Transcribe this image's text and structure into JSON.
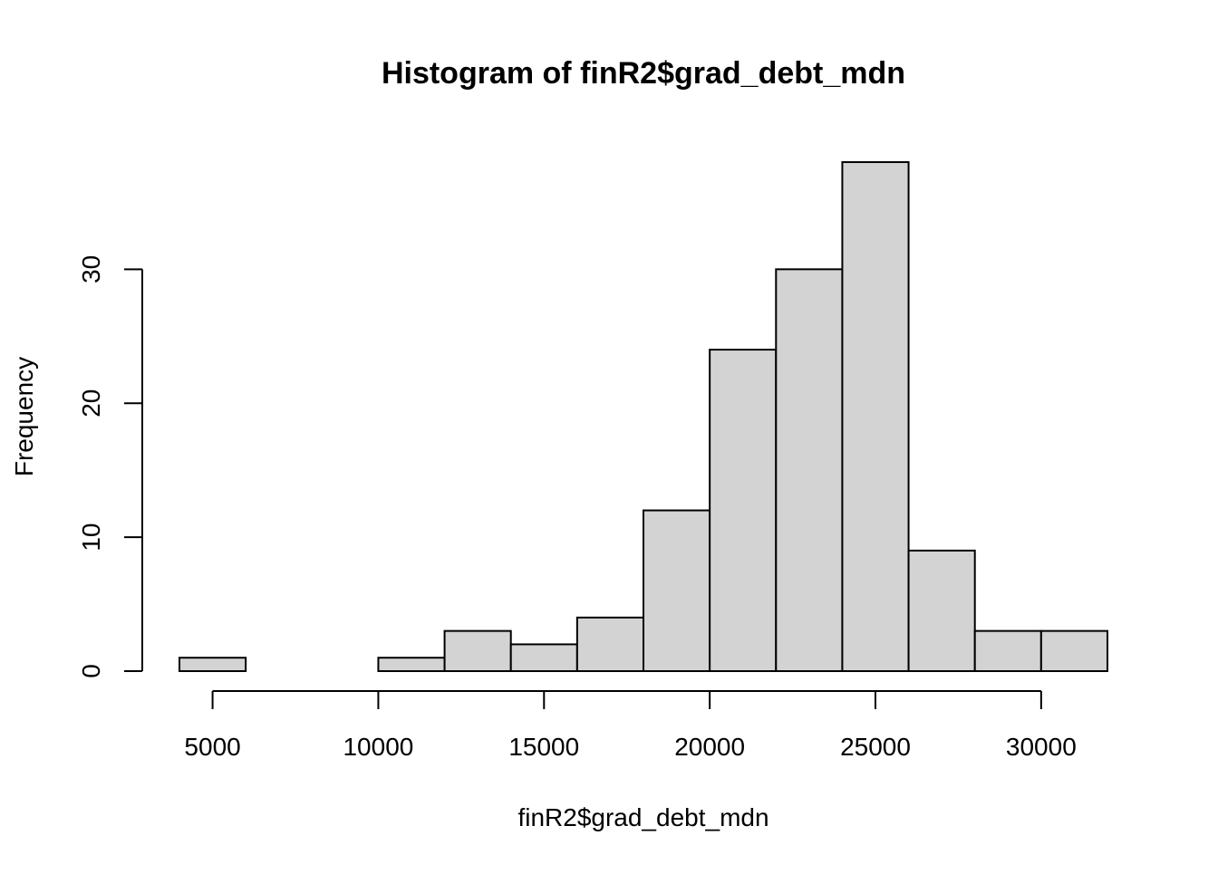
{
  "chart_data": {
    "type": "bar",
    "title": "Histogram of finR2$grad_debt_mdn",
    "xlabel": "finR2$grad_debt_mdn",
    "ylabel": "Frequency",
    "bins": [
      {
        "start": 4000,
        "end": 6000,
        "count": 1
      },
      {
        "start": 6000,
        "end": 8000,
        "count": 0
      },
      {
        "start": 8000,
        "end": 10000,
        "count": 0
      },
      {
        "start": 10000,
        "end": 12000,
        "count": 1
      },
      {
        "start": 12000,
        "end": 14000,
        "count": 3
      },
      {
        "start": 14000,
        "end": 16000,
        "count": 2
      },
      {
        "start": 16000,
        "end": 18000,
        "count": 4
      },
      {
        "start": 18000,
        "end": 20000,
        "count": 12
      },
      {
        "start": 20000,
        "end": 22000,
        "count": 24
      },
      {
        "start": 22000,
        "end": 24000,
        "count": 30
      },
      {
        "start": 24000,
        "end": 26000,
        "count": 38
      },
      {
        "start": 26000,
        "end": 28000,
        "count": 9
      },
      {
        "start": 28000,
        "end": 30000,
        "count": 3
      },
      {
        "start": 30000,
        "end": 32000,
        "count": 3
      }
    ],
    "x_ticks": [
      5000,
      10000,
      15000,
      20000,
      25000,
      30000
    ],
    "x_tick_labels": [
      "5000",
      "10000",
      "15000",
      "20000",
      "25000",
      "30000"
    ],
    "y_ticks": [
      0,
      10,
      20,
      30
    ],
    "y_tick_labels": [
      "0",
      "10",
      "20",
      "30"
    ],
    "xlim": [
      4000,
      32000
    ],
    "ylim": [
      0,
      38
    ],
    "bar_fill": "#d3d3d3",
    "bar_stroke": "#000000",
    "grid": false,
    "legend": "none"
  }
}
